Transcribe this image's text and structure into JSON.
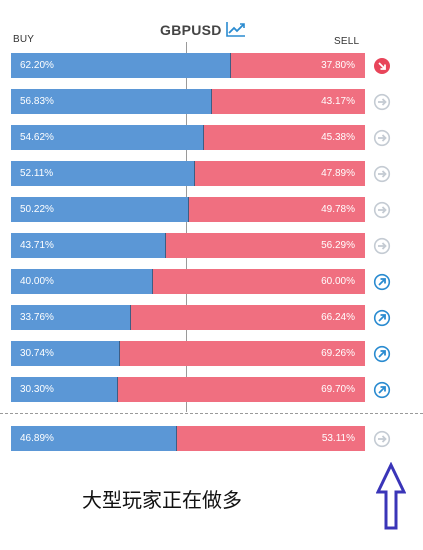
{
  "header": {
    "buy_label": "BUY",
    "sell_label": "SELL",
    "symbol": "GBPUSD",
    "chart_icon": "trend-chart-icon"
  },
  "colors": {
    "buy": "#5b97d6",
    "sell": "#f06f80",
    "icon_red": "#e8455a",
    "icon_grey": "#c4cbd3",
    "icon_blue": "#2a8bd0",
    "annotation": "#3a35b8"
  },
  "rows": [
    {
      "buy": "62.20%",
      "sell": "37.80%",
      "buy_fraction": 0.622,
      "icon": "arrow-down-right-icon",
      "icon_state": "red"
    },
    {
      "buy": "56.83%",
      "sell": "43.17%",
      "buy_fraction": 0.5683,
      "icon": "arrow-right-icon",
      "icon_state": "grey"
    },
    {
      "buy": "54.62%",
      "sell": "45.38%",
      "buy_fraction": 0.5462,
      "icon": "arrow-right-icon",
      "icon_state": "grey"
    },
    {
      "buy": "52.11%",
      "sell": "47.89%",
      "buy_fraction": 0.5211,
      "icon": "arrow-right-icon",
      "icon_state": "grey"
    },
    {
      "buy": "50.22%",
      "sell": "49.78%",
      "buy_fraction": 0.5022,
      "icon": "arrow-right-icon",
      "icon_state": "grey"
    },
    {
      "buy": "43.71%",
      "sell": "56.29%",
      "buy_fraction": 0.4371,
      "icon": "arrow-right-icon",
      "icon_state": "grey"
    },
    {
      "buy": "40.00%",
      "sell": "60.00%",
      "buy_fraction": 0.4,
      "icon": "arrow-up-right-icon",
      "icon_state": "blue"
    },
    {
      "buy": "33.76%",
      "sell": "66.24%",
      "buy_fraction": 0.3376,
      "icon": "arrow-up-right-icon",
      "icon_state": "blue"
    },
    {
      "buy": "30.74%",
      "sell": "69.26%",
      "buy_fraction": 0.3074,
      "icon": "arrow-up-right-icon",
      "icon_state": "blue"
    },
    {
      "buy": "30.30%",
      "sell": "69.70%",
      "buy_fraction": 0.303,
      "icon": "arrow-up-right-icon",
      "icon_state": "blue"
    }
  ],
  "summary": {
    "buy": "46.89%",
    "sell": "53.11%",
    "buy_fraction": 0.4689,
    "icon": "arrow-right-icon",
    "icon_state": "grey"
  },
  "annotation": {
    "text": "大型玩家正在做多",
    "arrow_icon": "hollow-up-arrow-icon"
  }
}
